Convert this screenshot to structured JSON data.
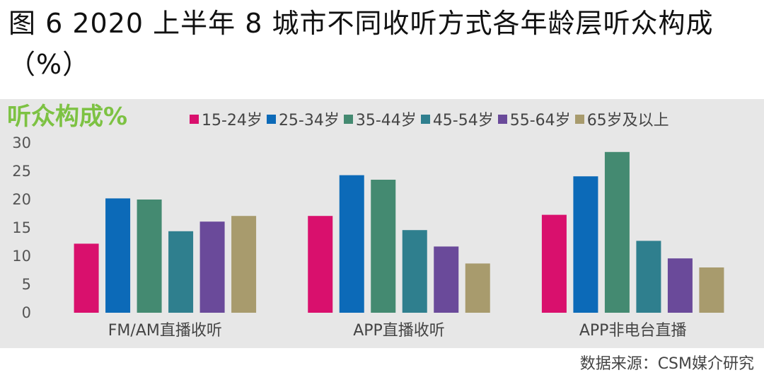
{
  "title": "图 6  2020 上半年 8 城市不同收听方式各年龄层听众构成（%）",
  "source": "数据来源：CSM媒介研究",
  "chart_data": {
    "type": "bar",
    "ylabel": "听众构成%",
    "xlabel": "",
    "ylim": [
      0,
      30
    ],
    "yticks": [
      0,
      5,
      10,
      15,
      20,
      25,
      30
    ],
    "grid": false,
    "legend_position": "top",
    "categories": [
      "FM/AM直播收听",
      "APP直播收听",
      "APP非电台直播"
    ],
    "series": [
      {
        "name": "15-24岁",
        "color": "#d9106d",
        "values": [
          12.2,
          17.1,
          17.3
        ]
      },
      {
        "name": "25-34岁",
        "color": "#0c6ab8",
        "values": [
          20.2,
          24.3,
          24.1
        ]
      },
      {
        "name": "35-44岁",
        "color": "#448a71",
        "values": [
          20.0,
          23.5,
          28.4
        ]
      },
      {
        "name": "45-54岁",
        "color": "#2f7f8e",
        "values": [
          14.4,
          14.6,
          12.7
        ]
      },
      {
        "name": "55-64岁",
        "color": "#6a4a9a",
        "values": [
          16.1,
          11.7,
          9.6
        ]
      },
      {
        "name": "65岁及以上",
        "color": "#a89b6d",
        "values": [
          17.1,
          8.7,
          8.0
        ]
      }
    ]
  }
}
